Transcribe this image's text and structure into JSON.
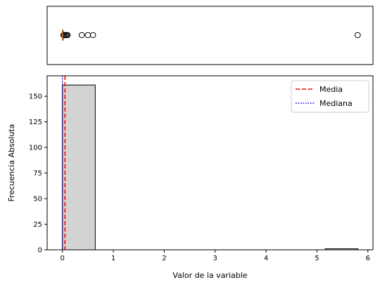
{
  "chart_data": [
    {
      "type": "box",
      "orientation": "horizontal",
      "xlim": [
        -0.3,
        6.1
      ],
      "median": 0.0,
      "q1": 0.0,
      "q3": 0.01,
      "whisker_low": 0.0,
      "whisker_high": 0.02,
      "outliers": [
        0.02,
        0.03,
        0.05,
        0.07,
        0.09,
        0.1,
        0.38,
        0.5,
        0.6,
        5.8
      ],
      "colors": {
        "median": "#ff7f0e",
        "box": "#000000"
      }
    },
    {
      "type": "bar",
      "subtype": "histogram",
      "xlabel": "Valor de la variable",
      "ylabel": "Frecuencia Absoluta",
      "xlim": [
        -0.3,
        6.1
      ],
      "ylim": [
        0,
        170
      ],
      "xticks": [
        0,
        1,
        2,
        3,
        4,
        5,
        6
      ],
      "yticks": [
        0,
        25,
        50,
        75,
        100,
        125,
        150
      ],
      "bins": [
        {
          "x0": 0.0,
          "x1": 0.645,
          "count": 161
        },
        {
          "x0": 0.645,
          "x1": 1.29,
          "count": 0
        },
        {
          "x0": 1.29,
          "x1": 1.935,
          "count": 0
        },
        {
          "x0": 1.935,
          "x1": 2.58,
          "count": 0
        },
        {
          "x0": 2.58,
          "x1": 3.225,
          "count": 0
        },
        {
          "x0": 3.225,
          "x1": 3.87,
          "count": 0
        },
        {
          "x0": 3.87,
          "x1": 4.515,
          "count": 0
        },
        {
          "x0": 4.515,
          "x1": 5.16,
          "count": 0
        },
        {
          "x0": 5.16,
          "x1": 5.805,
          "count": 1
        }
      ],
      "bar_color": "#d3d3d3",
      "vlines": [
        {
          "name": "Media",
          "value": 0.05,
          "color": "#ff0000",
          "style": "dashed"
        },
        {
          "name": "Mediana",
          "value": 0.0,
          "color": "#0000ff",
          "style": "dotted"
        }
      ],
      "legend": {
        "placement": "upper-right",
        "entries": [
          "Media",
          "Mediana"
        ]
      }
    }
  ]
}
